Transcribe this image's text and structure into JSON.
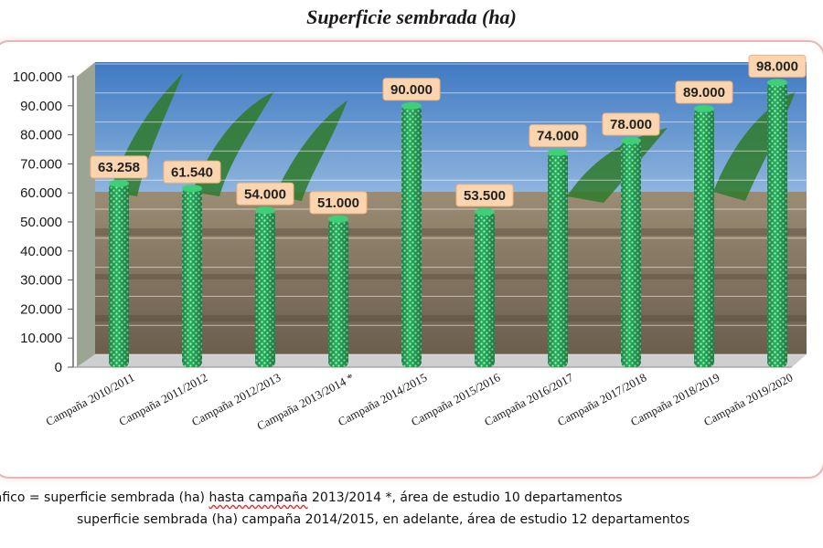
{
  "page_title": "Superficie sembrada (ha)",
  "chart_data": {
    "type": "bar",
    "title": "Superficie sembrada (ha)",
    "categories": [
      "Campaña 2010/2011",
      "Campaña 2011/2012",
      "Campaña 2012/2013",
      "Campaña 2013/2014 *",
      "Campaña 2014/2015",
      "Campaña 2015/2016",
      "Campaña 2016/2017",
      "Campaña 2017/2018",
      "Campaña 2018/2019",
      "Campaña 2019/2020"
    ],
    "values": [
      63258,
      61540,
      54000,
      51000,
      90000,
      53500,
      74000,
      78000,
      89000,
      98000
    ],
    "value_labels": [
      "63.258",
      "61.540",
      "54.000",
      "51.000",
      "90.000",
      "53.500",
      "74.000",
      "78.000",
      "89.000",
      "98.000"
    ],
    "y_ticks": [
      0,
      10000,
      20000,
      30000,
      40000,
      50000,
      60000,
      70000,
      80000,
      90000,
      100000
    ],
    "y_tick_labels": [
      "0",
      "10.000",
      "20.000",
      "30.000",
      "40.000",
      "50.000",
      "60.000",
      "70.000",
      "80.000",
      "90.000",
      "100.000"
    ],
    "ylim": [
      0,
      100000
    ],
    "grid": true,
    "legend": "none",
    "colors": {
      "bar": "#1fb25a",
      "bar_dots": "#c9f5d6",
      "label_bg": "#fbd5b0",
      "label_border": "#f0b27c",
      "sky": "#5f92c9",
      "soil": "#8a7b66"
    }
  },
  "footnote": {
    "line1_prefix": "ráfico = superficie sembrada (ha) ",
    "line1_underlined": "hasta campaña",
    "line1_suffix": " 2013/2014 *, área de estudio 10 departamentos",
    "line2": "superficie sembrada (ha) campaña 2014/2015, en adelante, área de estudio 12 departamentos"
  }
}
